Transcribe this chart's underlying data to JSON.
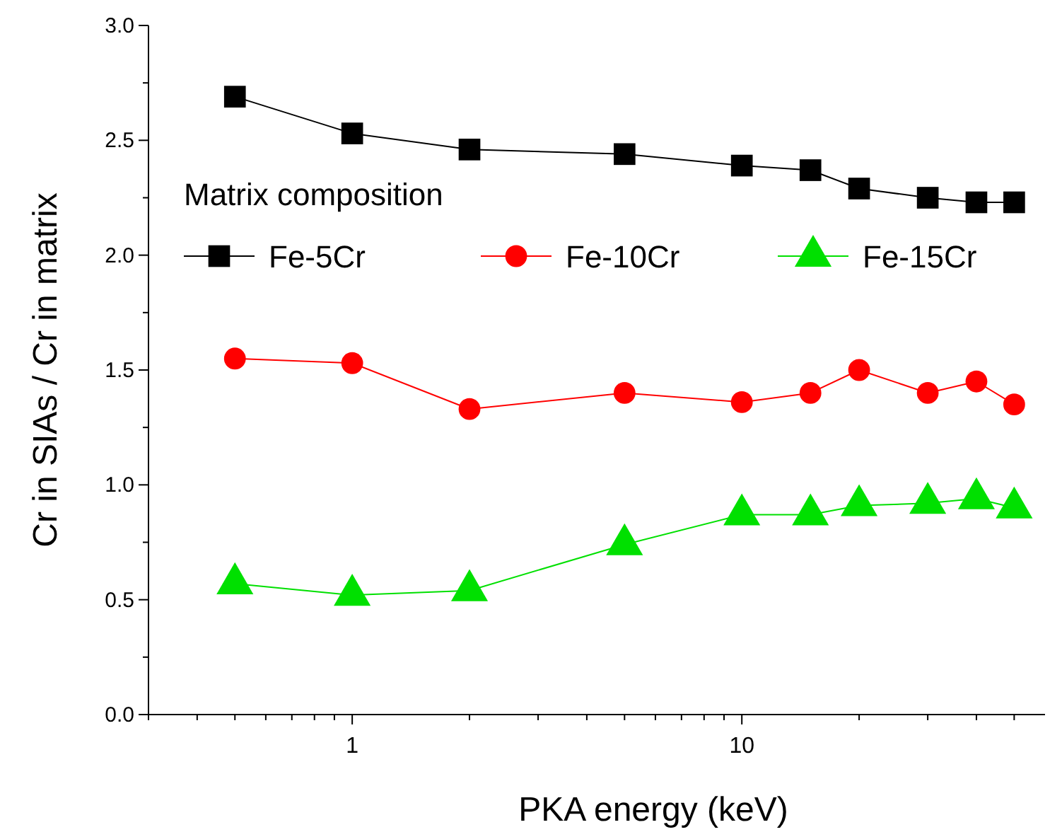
{
  "chart_data": {
    "type": "line",
    "xlabel": "PKA energy (keV)",
    "ylabel": "Cr in SIAs / Cr in matrix",
    "legend_title": "Matrix composition",
    "legend": "top left",
    "log": "x",
    "marker": "square",
    "line_style": "solid",
    "grid": false,
    "x": [
      0.5,
      1,
      2,
      5,
      10,
      15,
      20,
      30,
      40,
      50
    ],
    "xlim": [
      0.3,
      60
    ],
    "xticks": [
      {
        "value": 0.3,
        "label": null
      },
      {
        "value": 0.4,
        "label": null
      },
      {
        "value": 0.5,
        "label": null
      },
      {
        "value": 0.6,
        "label": null
      },
      {
        "value": 0.7,
        "label": null
      },
      {
        "value": 0.8,
        "label": null
      },
      {
        "value": 0.9,
        "label": null
      },
      1,
      {
        "value": 2,
        "label": null
      },
      {
        "value": 3,
        "label": null
      },
      {
        "value": 4,
        "label": null
      },
      {
        "value": 5,
        "label": null
      },
      {
        "value": 6,
        "label": null
      },
      {
        "value": 7,
        "label": null
      },
      {
        "value": 8,
        "label": null
      },
      {
        "value": 9,
        "label": null
      },
      10,
      {
        "value": 20,
        "label": null
      },
      {
        "value": 30,
        "label": null
      },
      {
        "value": 40,
        "label": null
      },
      {
        "value": 50,
        "label": null
      }
    ],
    "ylim": [
      0,
      3
    ],
    "yticks": [
      {
        "value": 0,
        "label": "0.0"
      },
      {
        "value": 0.25,
        "label": null
      },
      {
        "value": 0.5,
        "label": "0.5"
      },
      {
        "value": 0.75,
        "label": null
      },
      {
        "value": 1,
        "label": "1.0"
      },
      {
        "value": 1.25,
        "label": null
      },
      {
        "value": 1.5,
        "label": "1.5"
      },
      {
        "value": 1.75,
        "label": null
      },
      {
        "value": 2,
        "label": "2.0"
      },
      {
        "value": 2.25,
        "label": null
      },
      {
        "value": 2.5,
        "label": "2.5"
      },
      {
        "value": 2.75,
        "label": null
      },
      {
        "value": 3,
        "label": "3.0"
      }
    ],
    "series": [
      {
        "name": "Fe-5Cr",
        "color": "#000000",
        "marker": "square",
        "values": [
          2.69,
          2.53,
          2.46,
          2.44,
          2.39,
          2.37,
          2.29,
          2.25,
          2.23,
          2.23
        ]
      },
      {
        "name": "Fe-10Cr",
        "color": "#ff0000",
        "marker": "circle",
        "values": [
          1.55,
          1.53,
          1.33,
          1.4,
          1.36,
          1.4,
          1.5,
          1.4,
          1.45,
          1.35
        ]
      },
      {
        "name": "Fe-15Cr",
        "color": "#00e000",
        "marker": "triangle",
        "values": [
          0.57,
          0.52,
          0.54,
          0.74,
          0.87,
          0.87,
          0.91,
          0.92,
          0.94,
          0.9
        ]
      }
    ]
  }
}
